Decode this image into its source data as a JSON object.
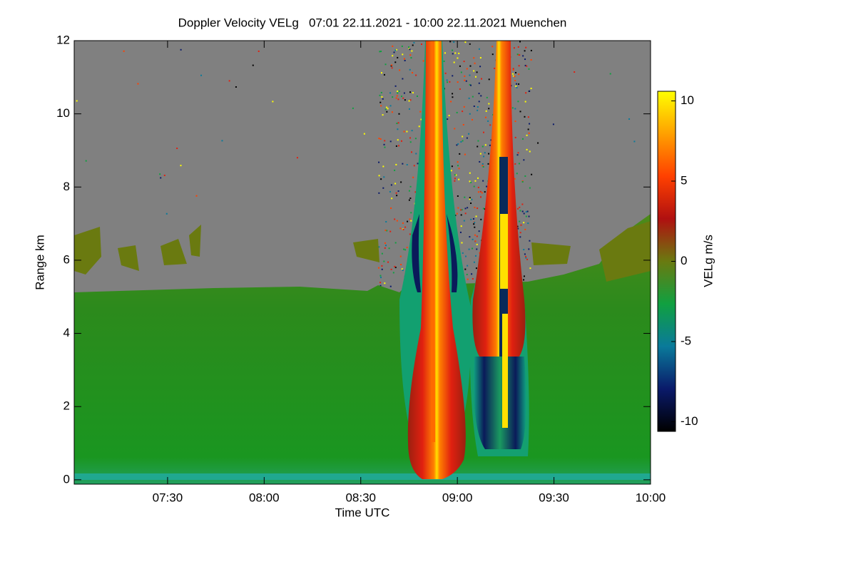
{
  "chart_data": {
    "type": "heatmap",
    "title": "Doppler Velocity VELg   07:01 22.11.2021 - 10:00 22.11.2021 Muenchen",
    "x_label": "Time UTC",
    "y_label": "Range km",
    "xlim": [
      421,
      600
    ],
    "xticks": [
      {
        "value": 450,
        "label": "07:30"
      },
      {
        "value": 480,
        "label": "08:00"
      },
      {
        "value": 510,
        "label": "08:30"
      },
      {
        "value": 540,
        "label": "09:00"
      },
      {
        "value": 570,
        "label": "09:30"
      },
      {
        "value": 600,
        "label": "10:00"
      }
    ],
    "ylim": [
      -0.12,
      12
    ],
    "yticks": [
      0,
      2,
      4,
      6,
      8,
      10,
      12
    ],
    "colorbar": {
      "label": "VELg m/s",
      "lim": [
        -10.6,
        10.6
      ],
      "ticks": [
        -10,
        -5,
        0,
        5,
        10
      ],
      "colors": [
        "#000000",
        "#0a1a6a",
        "#0a7a9a",
        "#10a040",
        "#6a7a10",
        "#b01010",
        "#ff4000",
        "#ffa000",
        "#ffff00"
      ]
    }
  }
}
